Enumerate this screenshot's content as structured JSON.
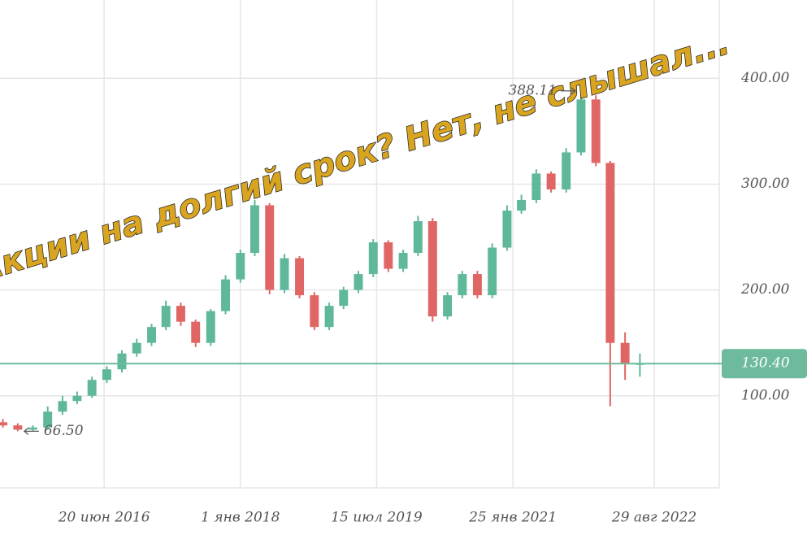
{
  "chart_data": {
    "type": "candlestick",
    "title": "Акции на долгий срок? Нет, не слышал...",
    "x": [
      "2015-05",
      "2015-07",
      "2015-09",
      "2015-11",
      "2016-01",
      "2016-03",
      "2016-05",
      "2016-07",
      "2016-09",
      "2016-11",
      "2017-01",
      "2017-03",
      "2017-05",
      "2017-07",
      "2017-09",
      "2017-11",
      "2018-01",
      "2018-03",
      "2018-05",
      "2018-07",
      "2018-09",
      "2018-11",
      "2019-01",
      "2019-03",
      "2019-05",
      "2019-07",
      "2019-09",
      "2019-11",
      "2020-01",
      "2020-03",
      "2020-05",
      "2020-07",
      "2020-09",
      "2020-11",
      "2021-01",
      "2021-03",
      "2021-05",
      "2021-07",
      "2021-09",
      "2021-11",
      "2022-01",
      "2022-03",
      "2022-05",
      "2022-07"
    ],
    "open": [
      75,
      72,
      68,
      70,
      85,
      95,
      100,
      115,
      125,
      140,
      150,
      165,
      185,
      170,
      150,
      180,
      210,
      235,
      280,
      200,
      230,
      195,
      165,
      185,
      200,
      215,
      245,
      220,
      235,
      265,
      175,
      195,
      215,
      195,
      240,
      275,
      285,
      310,
      295,
      330,
      380,
      320,
      150,
      130
    ],
    "close": [
      72,
      68,
      70,
      85,
      95,
      100,
      115,
      125,
      140,
      150,
      165,
      185,
      170,
      150,
      180,
      210,
      235,
      280,
      200,
      230,
      195,
      165,
      185,
      200,
      215,
      245,
      220,
      235,
      265,
      175,
      195,
      215,
      195,
      240,
      275,
      285,
      310,
      295,
      330,
      380,
      320,
      150,
      130,
      130.4
    ],
    "high": [
      78,
      74,
      72,
      90,
      100,
      104,
      118,
      128,
      143,
      154,
      168,
      190,
      188,
      172,
      182,
      214,
      238,
      285,
      282,
      234,
      232,
      198,
      188,
      203,
      218,
      248,
      247,
      238,
      270,
      268,
      198,
      218,
      218,
      244,
      280,
      290,
      314,
      312,
      334,
      388.11,
      384,
      322,
      160,
      140
    ],
    "low": [
      70,
      66.5,
      66.5,
      68,
      82,
      92,
      98,
      112,
      122,
      137,
      147,
      162,
      166,
      146,
      147,
      177,
      207,
      232,
      196,
      197,
      192,
      162,
      162,
      182,
      197,
      212,
      217,
      217,
      232,
      170,
      172,
      192,
      192,
      192,
      237,
      272,
      282,
      292,
      292,
      327,
      317,
      90,
      115,
      118
    ],
    "up_color": "#5fb89a",
    "down_color": "#e06666",
    "xlim": [
      "2015-04-19",
      "2023-05-23"
    ],
    "xticks": [
      {
        "value": "2016-06-20",
        "label": "20 июн 2016"
      },
      {
        "value": "2018-01-01",
        "label": "1 янв 2018"
      },
      {
        "value": "2019-07-15",
        "label": "15 июл 2019"
      },
      {
        "value": "2021-01-25",
        "label": "25 янв 2021"
      },
      {
        "value": "2022-08-29",
        "label": "29 авг 2022"
      }
    ],
    "ylim": [
      13,
      474
    ],
    "yticks": [
      {
        "value": 100,
        "label": "100.00"
      },
      {
        "value": 200,
        "label": "200.00"
      },
      {
        "value": 300,
        "label": "300.00"
      },
      {
        "value": 400,
        "label": "400.00"
      }
    ],
    "grid": true,
    "price_line": {
      "value": 130.4,
      "label": "130.40",
      "color": "#6dbb9c"
    },
    "high_annotation": 388.11,
    "low_annotation": {
      "value": 66.5,
      "label": "66.50"
    }
  }
}
